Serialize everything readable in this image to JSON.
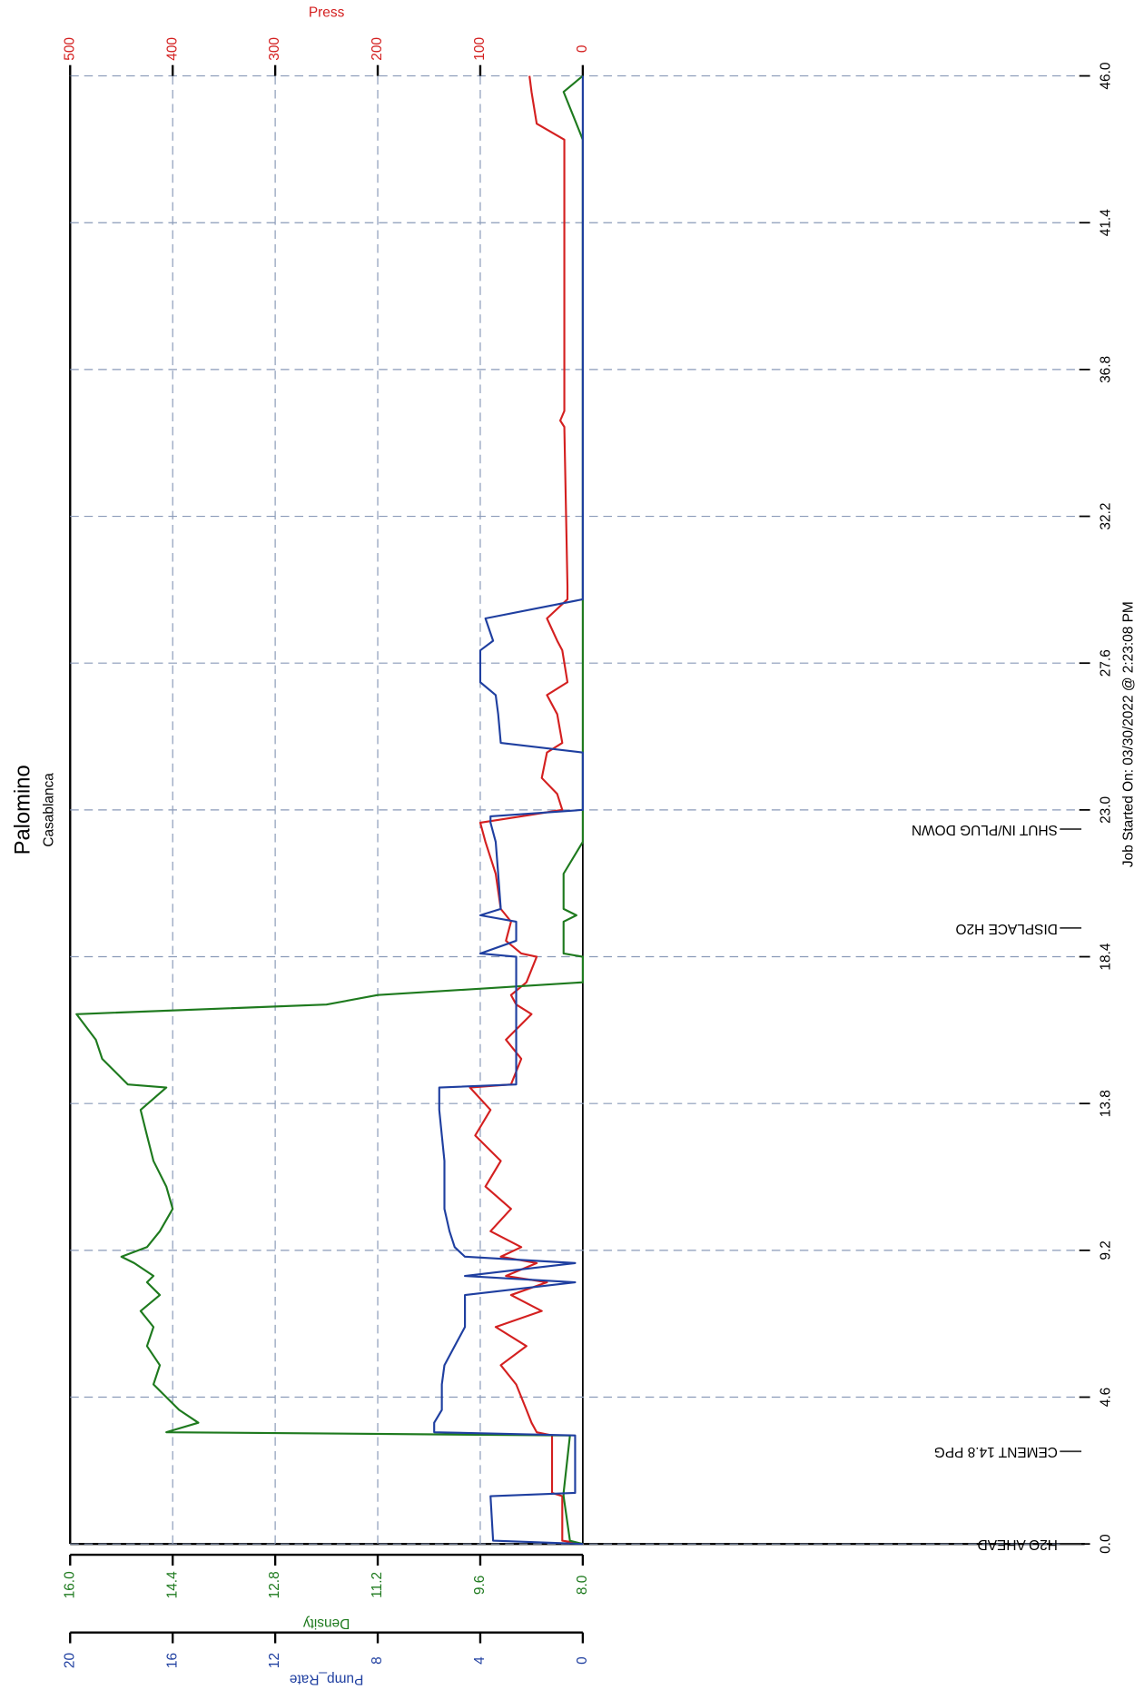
{
  "chart_data": {
    "type": "line",
    "title": "Palomino",
    "subtitle": "Casablanca",
    "footer": "Job Started On: 03/30/2022 @ 2:23:08 PM",
    "x": [
      0.0,
      0.1,
      1.5,
      1.6,
      3.4,
      3.5,
      3.8,
      4.2,
      5.0,
      5.6,
      6.2,
      6.8,
      7.3,
      7.8,
      8.2,
      8.4,
      8.8,
      9.0,
      9.3,
      9.8,
      10.5,
      11.2,
      12.0,
      12.8,
      13.6,
      14.3,
      14.4,
      15.2,
      15.8,
      16.6,
      16.9,
      17.2,
      17.6,
      18.4,
      18.5,
      18.9,
      19.5,
      19.7,
      19.9,
      21.0,
      22.0,
      22.6,
      22.8,
      23.0,
      23.5,
      24.0,
      24.8,
      25.1,
      26.0,
      26.6,
      27.0,
      28.0,
      28.3,
      29.0,
      29.6,
      30.0,
      35.0,
      35.2,
      35.5,
      44.0,
      44.5,
      45.5,
      46.0
    ],
    "xlim": [
      0,
      46
    ],
    "xticks": [
      {
        "value": 0,
        "label": "0.0"
      },
      4.6,
      9.2,
      13.8,
      18.4,
      {
        "value": 23,
        "label": "23.0"
      },
      27.6,
      32.2,
      36.8,
      41.4,
      {
        "value": 46,
        "label": "46.0"
      }
    ],
    "grid": true,
    "series": [
      {
        "name": "Press",
        "color": "#d42020",
        "lim": [
          0,
          500
        ],
        "ticks": [
          0,
          100,
          200,
          300,
          400,
          500
        ],
        "values": [
          0,
          20,
          20,
          30,
          30,
          45,
          50,
          55,
          65,
          80,
          55,
          85,
          40,
          70,
          35,
          75,
          45,
          80,
          60,
          90,
          70,
          95,
          80,
          105,
          90,
          110,
          70,
          60,
          75,
          50,
          65,
          70,
          55,
          45,
          60,
          75,
          70,
          75,
          80,
          85,
          95,
          100,
          60,
          20,
          25,
          40,
          35,
          20,
          25,
          35,
          15,
          20,
          25,
          35,
          15,
          15,
          18,
          22,
          18,
          18,
          45,
          50,
          52
        ]
      },
      {
        "name": "Density",
        "color": "#1e7a1e",
        "lim": [
          8,
          16
        ],
        "ticks": [
          {
            "value": 8,
            "label": "8.0"
          },
          9.6,
          11.2,
          12.8,
          14.4,
          {
            "value": 16,
            "label": "16.0"
          }
        ],
        "values": [
          8.0,
          8.2,
          8.3,
          8.3,
          8.2,
          14.5,
          14.0,
          14.3,
          14.7,
          14.6,
          14.8,
          14.7,
          14.9,
          14.6,
          14.8,
          14.7,
          15.0,
          15.2,
          14.8,
          14.6,
          14.4,
          14.5,
          14.7,
          14.8,
          14.9,
          14.5,
          15.1,
          15.5,
          15.6,
          15.9,
          12.0,
          11.2,
          8.0,
          8.0,
          8.3,
          8.3,
          8.3,
          8.1,
          8.3,
          8.3,
          8.0,
          8.0,
          8.0,
          8.0,
          8.0,
          8.0,
          8.0,
          8.0,
          8.0,
          8.0,
          8.0,
          8.0,
          8.0,
          8.0,
          8.0,
          8.0,
          8.0,
          8.0,
          8.0,
          8.0,
          8.1,
          8.3,
          8.0
        ]
      },
      {
        "name": "Pump_Rate",
        "color": "#1f3fa0",
        "lim": [
          0,
          20
        ],
        "ticks": [
          0,
          4,
          8,
          12,
          16,
          20
        ],
        "values": [
          0,
          3.5,
          3.6,
          0.3,
          0.3,
          5.8,
          5.8,
          5.5,
          5.5,
          5.4,
          5.0,
          4.6,
          4.6,
          4.6,
          0.3,
          4.6,
          0.3,
          4.6,
          5.0,
          5.2,
          5.4,
          5.4,
          5.4,
          5.5,
          5.6,
          5.6,
          2.6,
          2.6,
          2.6,
          2.6,
          2.6,
          2.6,
          2.6,
          2.6,
          4.0,
          2.6,
          2.6,
          4.0,
          3.2,
          3.3,
          3.4,
          3.6,
          3.6,
          0,
          0,
          0,
          0,
          3.2,
          3.3,
          3.4,
          4.0,
          4.0,
          3.5,
          3.8,
          0,
          0,
          0,
          0,
          0,
          0,
          0,
          0,
          0
        ]
      }
    ],
    "annotations": [
      {
        "label": "H2O AHEAD",
        "x": 0.0
      },
      {
        "label": "CEMENT 14.8 PPG",
        "x": 2.9
      },
      {
        "label": "DISPLACE H2O",
        "x": 19.3
      },
      {
        "label": "SHUT IN/PLUG DOWN",
        "x": 22.4
      }
    ]
  }
}
